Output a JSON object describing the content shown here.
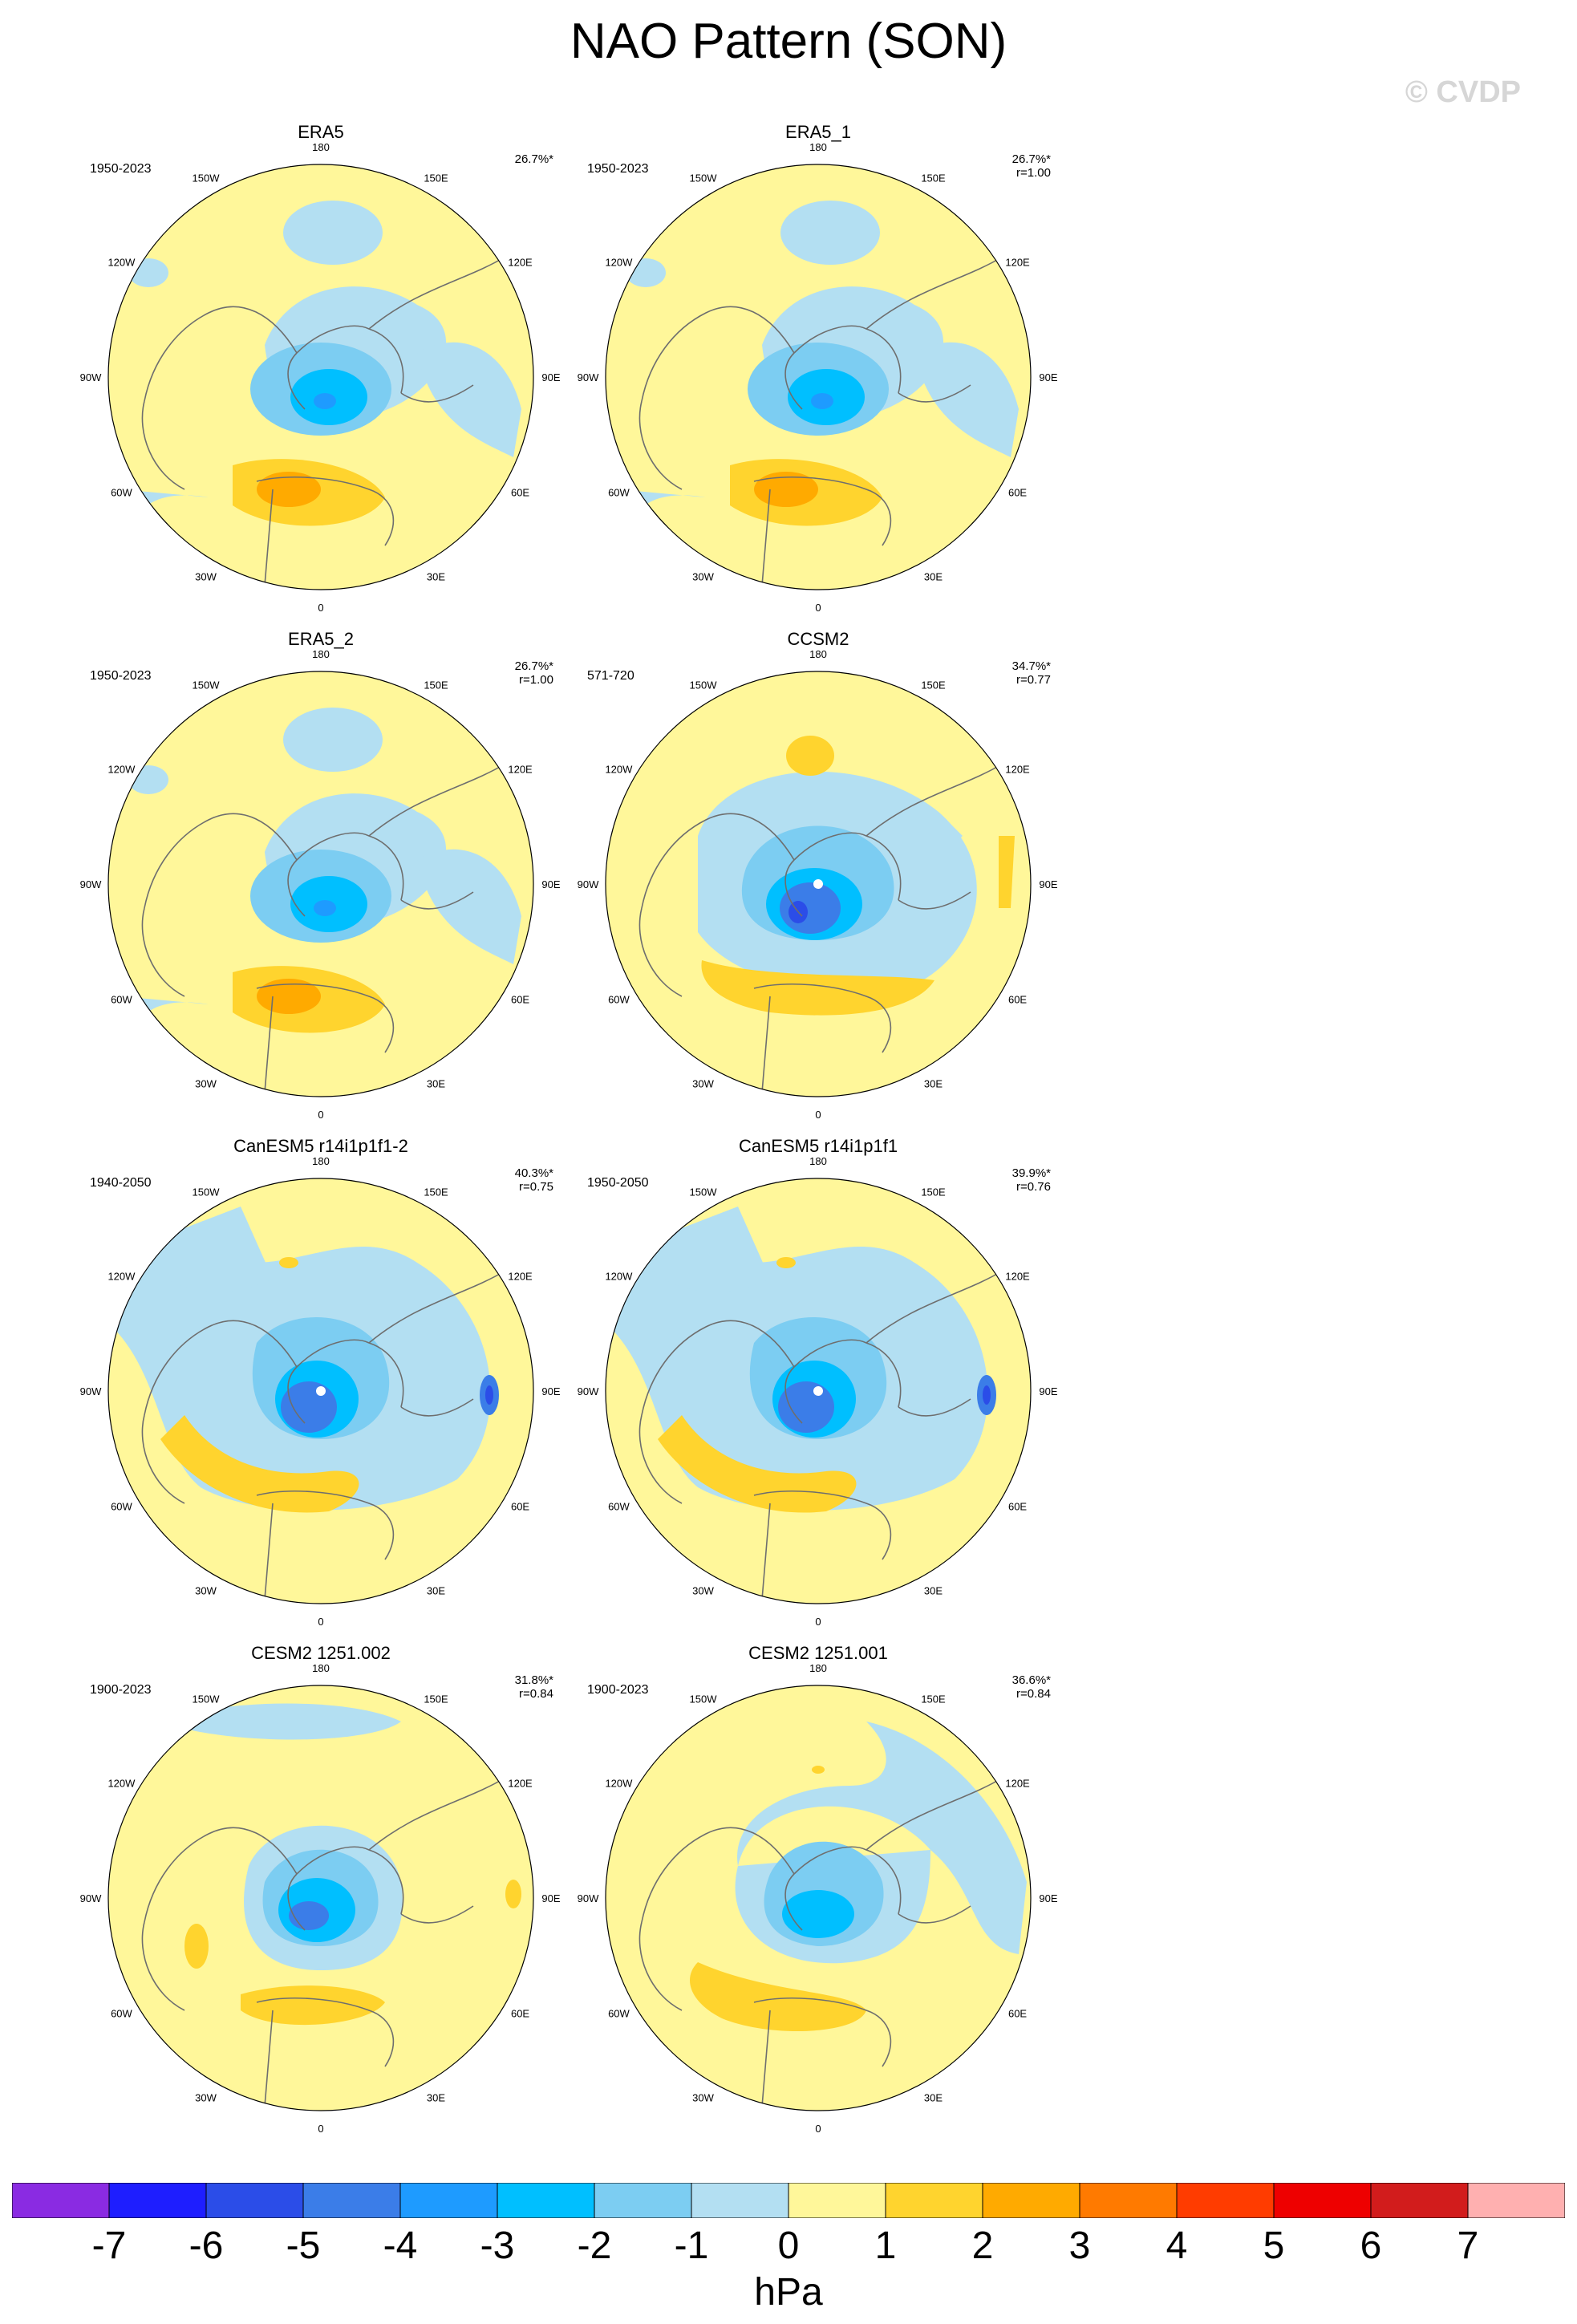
{
  "title": "NAO Pattern (SON)",
  "watermark": "© CVDP",
  "longitude_labels": [
    "180",
    "150E",
    "120E",
    "90E",
    "60E",
    "30E",
    "0",
    "30W",
    "60W",
    "90W",
    "120W",
    "150W"
  ],
  "panels": [
    {
      "title": "ERA5",
      "period": "1950-2023",
      "variance": "26.7%*",
      "correlation": "",
      "pattern": "obs"
    },
    {
      "title": "ERA5_1",
      "period": "1950-2023",
      "variance": "26.7%*",
      "correlation": "r=1.00",
      "pattern": "obs"
    },
    {
      "title": "ERA5_2",
      "period": "1950-2023",
      "variance": "26.7%*",
      "correlation": "r=1.00",
      "pattern": "obs"
    },
    {
      "title": "CCSM2",
      "period": "571-720",
      "variance": "34.7%*",
      "correlation": "r=0.77",
      "pattern": "ccsm2"
    },
    {
      "title": "CanESM5 r14i1p1f1-2",
      "period": "1940-2050",
      "variance": "40.3%*",
      "correlation": "r=0.75",
      "pattern": "canesm"
    },
    {
      "title": "CanESM5 r14i1p1f1",
      "period": "1950-2050",
      "variance": "39.9%*",
      "correlation": "r=0.76",
      "pattern": "canesm"
    },
    {
      "title": "CESM2 1251.002",
      "period": "1900-2023",
      "variance": "31.8%*",
      "correlation": "r=0.84",
      "pattern": "cesm2a"
    },
    {
      "title": "CESM2 1251.001",
      "period": "1900-2023",
      "variance": "36.6%*",
      "correlation": "r=0.84",
      "pattern": "cesm2b"
    }
  ],
  "colorbar": {
    "unit": "hPa",
    "labels": [
      "-7",
      "-6",
      "-5",
      "-4",
      "-3",
      "-2",
      "-1",
      "0",
      "1",
      "2",
      "3",
      "4",
      "5",
      "6",
      "7"
    ],
    "colors": [
      "#8a2be2",
      "#1e1eff",
      "#2b4de8",
      "#3b7de8",
      "#1e9bff",
      "#00bfff",
      "#7ccdf2",
      "#b3dff2",
      "#fff79a",
      "#ffd42e",
      "#ffaa00",
      "#ff7a00",
      "#ff3c00",
      "#ee0000",
      "#d21c1c",
      "#ffb0b0"
    ]
  },
  "palette": {
    "neg3": "#1e9bff",
    "neg2": "#00bfff",
    "neg1": "#7ccdf2",
    "neg05": "#b3dff2",
    "zero": "#fff79a",
    "pos1": "#ffd42e",
    "pos2": "#ffaa00",
    "coast": "#6e6e6e"
  }
}
